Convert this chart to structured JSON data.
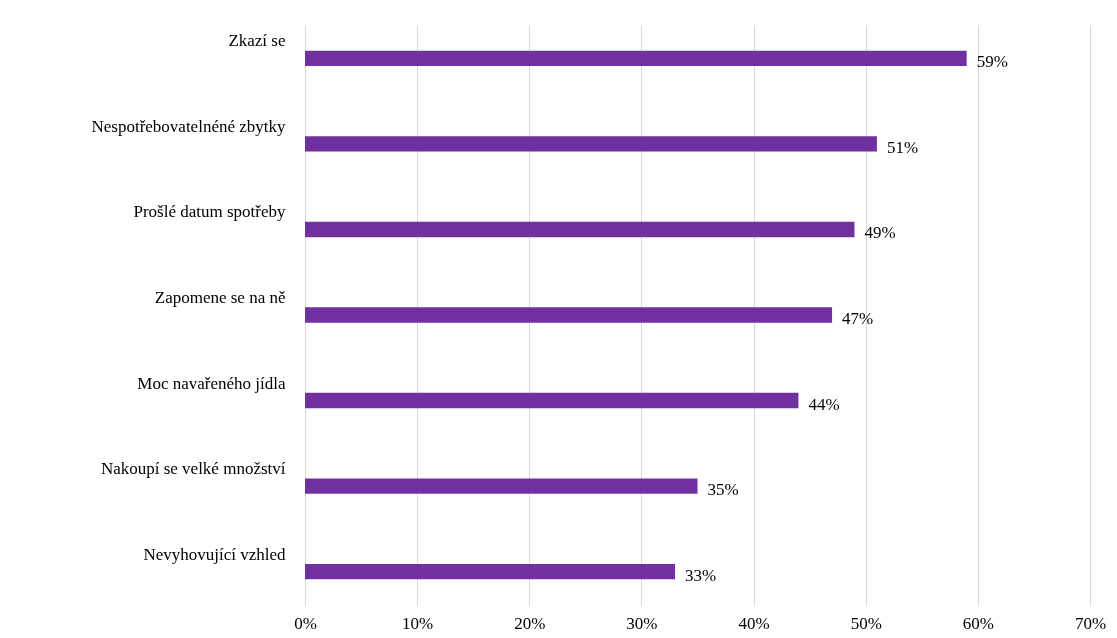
{
  "chart_data": {
    "type": "bar",
    "orientation": "horizontal",
    "categories": [
      "Zkazí se",
      "Nespotřebovatelnéné zbytky",
      "Prošlé datum spotřeby",
      "Zapomene se na ně",
      "Moc navařeného jídla",
      "Nakoupí se velké množství",
      "Nevyhovující vzhled"
    ],
    "values": [
      59,
      51,
      49,
      47,
      44,
      35,
      33
    ],
    "value_labels": [
      "59%",
      "51%",
      "49%",
      "47%",
      "44%",
      "35%",
      "33%"
    ],
    "color": "#7030a0",
    "xlim": [
      0,
      70
    ],
    "xticks": [
      {
        "value": 0,
        "label": "0%"
      },
      {
        "value": 10,
        "label": "10%"
      },
      {
        "value": 20,
        "label": "20%"
      },
      {
        "value": 30,
        "label": "30%"
      },
      {
        "value": 40,
        "label": "40%"
      },
      {
        "value": 50,
        "label": "50%"
      },
      {
        "value": 60,
        "label": "60%"
      },
      {
        "value": 70,
        "label": "70%"
      }
    ],
    "grid": "x"
  }
}
